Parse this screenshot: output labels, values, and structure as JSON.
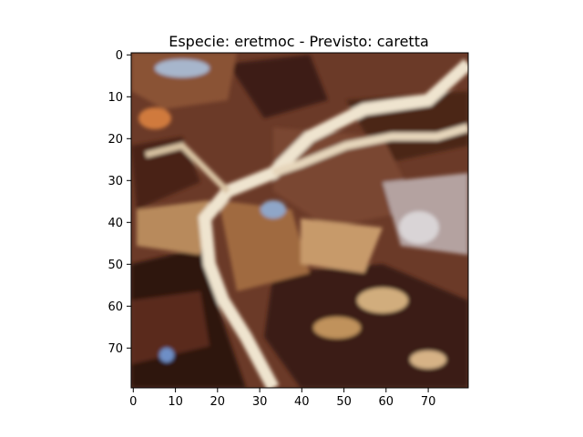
{
  "figure": {
    "title": "Especie: eretmoc - Previsto: caretta"
  },
  "image": {
    "description_semantic": "turtle-shell-scute-closeup",
    "grid_size": [
      80,
      80
    ],
    "colors": {
      "dark_brown": "#3a1c14",
      "mid_brown": "#7a4630",
      "tan": "#c79a6a",
      "cream": "#efe4cf",
      "blue_tint": "#8fa6c8",
      "orange": "#d07a3c"
    }
  },
  "axes": {
    "x_ticks": [
      "0",
      "10",
      "20",
      "30",
      "40",
      "50",
      "60",
      "70"
    ],
    "y_ticks": [
      "0",
      "10",
      "20",
      "30",
      "40",
      "50",
      "60",
      "70"
    ],
    "xlim": [
      -0.5,
      79.5
    ],
    "ylim": [
      79.5,
      -0.5
    ]
  }
}
